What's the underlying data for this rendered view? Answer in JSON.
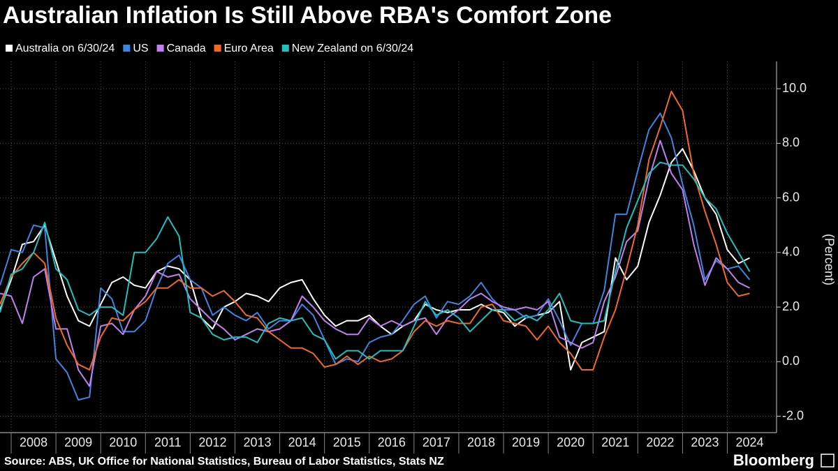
{
  "chart_data": {
    "type": "line",
    "title": "Australian Inflation Is Still Above RBA's Comfort Zone",
    "y_label": "(Percent)",
    "source": "Source: ABS, UK Office for National Statistics, Bureau of Labor Statistics, Stats NZ",
    "brand": "Bloomberg",
    "x": [
      2007.75,
      2008,
      2008.25,
      2008.5,
      2008.75,
      2009,
      2009.25,
      2009.5,
      2009.75,
      2010,
      2010.25,
      2010.5,
      2010.75,
      2011,
      2011.25,
      2011.5,
      2011.75,
      2012,
      2012.25,
      2012.5,
      2012.75,
      2013,
      2013.25,
      2013.5,
      2013.75,
      2014,
      2014.25,
      2014.5,
      2014.75,
      2015,
      2015.25,
      2015.5,
      2015.75,
      2016,
      2016.25,
      2016.5,
      2016.75,
      2017,
      2017.25,
      2017.5,
      2017.75,
      2018,
      2018.25,
      2018.5,
      2018.75,
      2019,
      2019.25,
      2019.5,
      2019.75,
      2020,
      2020.25,
      2020.5,
      2020.75,
      2021,
      2021.25,
      2021.5,
      2021.75,
      2022,
      2022.25,
      2022.5,
      2022.75,
      2023,
      2023.25,
      2023.5,
      2023.75,
      2024,
      2024.25,
      2024.5
    ],
    "series": [
      {
        "name": "Australia on 6/30/24",
        "color": "#ffffff",
        "values": [
          1.9,
          3.0,
          4.3,
          4.4,
          5.0,
          3.7,
          2.4,
          1.5,
          1.3,
          2.1,
          2.9,
          3.1,
          2.8,
          2.7,
          3.3,
          3.5,
          3.4,
          3.0,
          1.6,
          1.2,
          2.0,
          2.2,
          2.5,
          2.4,
          2.2,
          2.7,
          2.9,
          3.0,
          2.3,
          1.7,
          1.3,
          1.5,
          1.5,
          1.7,
          1.3,
          1.0,
          1.3,
          1.5,
          2.1,
          1.9,
          1.8,
          1.9,
          1.9,
          2.1,
          1.9,
          1.8,
          1.3,
          1.6,
          1.7,
          1.8,
          2.2,
          -0.3,
          0.7,
          0.9,
          1.1,
          3.8,
          3.0,
          3.5,
          5.1,
          6.1,
          7.3,
          7.8,
          7.0,
          6.0,
          5.4,
          4.1,
          3.6,
          3.8
        ]
      },
      {
        "name": "US",
        "color": "#3d85e0",
        "values": [
          2.8,
          4.1,
          4.0,
          5.0,
          4.9,
          0.1,
          -0.4,
          -1.4,
          -1.3,
          2.7,
          2.3,
          1.1,
          1.1,
          1.5,
          2.7,
          3.6,
          3.9,
          3.0,
          2.7,
          1.7,
          2.0,
          1.7,
          1.5,
          1.8,
          1.2,
          1.5,
          1.5,
          2.1,
          1.7,
          0.8,
          -0.1,
          0.1,
          0.0,
          0.7,
          0.9,
          1.0,
          1.5,
          2.1,
          2.4,
          1.6,
          2.2,
          2.1,
          2.4,
          2.9,
          2.3,
          1.9,
          1.9,
          1.6,
          1.7,
          2.3,
          1.5,
          0.6,
          1.4,
          1.4,
          2.6,
          5.4,
          5.4,
          7.0,
          8.5,
          9.1,
          8.2,
          6.5,
          5.0,
          3.0,
          3.7,
          3.4,
          3.5,
          3.0
        ]
      },
      {
        "name": "Canada",
        "color": "#c17ff0",
        "values": [
          2.5,
          2.4,
          1.4,
          3.1,
          3.4,
          1.2,
          1.2,
          -0.3,
          -0.9,
          1.3,
          1.4,
          1.0,
          1.9,
          2.4,
          3.3,
          3.1,
          3.2,
          2.3,
          1.9,
          1.5,
          1.2,
          0.8,
          1.0,
          1.2,
          1.1,
          1.2,
          1.5,
          2.4,
          2.0,
          1.5,
          1.2,
          1.0,
          1.0,
          1.6,
          1.3,
          1.5,
          1.3,
          1.5,
          1.6,
          1.0,
          1.6,
          1.9,
          2.3,
          2.5,
          2.2,
          2.0,
          1.9,
          2.0,
          1.9,
          2.2,
          0.9,
          0.7,
          0.5,
          0.7,
          2.2,
          3.1,
          4.4,
          4.8,
          6.7,
          8.1,
          6.9,
          6.3,
          4.3,
          2.8,
          3.8,
          3.4,
          2.9,
          2.7
        ]
      },
      {
        "name": "Euro Area",
        "color": "#f06a23",
        "values": [
          2.1,
          3.1,
          3.6,
          4.0,
          3.6,
          1.6,
          0.6,
          -0.1,
          -0.3,
          0.9,
          1.6,
          1.5,
          1.9,
          2.2,
          2.7,
          2.7,
          3.0,
          2.7,
          2.7,
          2.4,
          2.6,
          2.2,
          1.7,
          1.6,
          1.1,
          0.8,
          0.5,
          0.5,
          0.3,
          -0.2,
          -0.1,
          0.2,
          -0.1,
          0.2,
          0.0,
          0.1,
          0.4,
          1.1,
          1.5,
          1.3,
          1.5,
          1.4,
          1.4,
          2.0,
          2.1,
          1.5,
          1.4,
          1.3,
          0.8,
          1.3,
          0.7,
          0.3,
          -0.3,
          -0.3,
          0.9,
          1.9,
          3.4,
          5.0,
          7.4,
          8.6,
          9.9,
          9.2,
          6.9,
          5.5,
          4.3,
          2.9,
          2.4,
          2.5
        ]
      },
      {
        "name": "New Zealand on 6/30/24",
        "color": "#1fbfbf",
        "values": [
          1.8,
          3.2,
          3.4,
          4.0,
          5.1,
          3.4,
          3.0,
          1.9,
          1.7,
          2.0,
          2.0,
          1.7,
          4.0,
          4.0,
          4.5,
          5.3,
          4.6,
          1.8,
          1.6,
          1.0,
          0.8,
          0.9,
          0.9,
          0.7,
          1.4,
          1.6,
          1.5,
          1.6,
          1.0,
          0.8,
          0.1,
          0.4,
          0.4,
          0.1,
          0.4,
          0.4,
          0.4,
          1.3,
          2.2,
          1.7,
          1.9,
          1.6,
          1.1,
          1.5,
          1.9,
          1.9,
          1.5,
          1.7,
          1.5,
          1.9,
          2.5,
          1.5,
          1.4,
          1.4,
          1.5,
          3.3,
          4.9,
          5.9,
          6.9,
          7.3,
          7.2,
          7.2,
          6.7,
          6.0,
          5.6,
          4.7,
          4.0,
          3.3
        ]
      }
    ],
    "xlim": [
      2007.75,
      2025.1
    ],
    "xticks": [
      2008,
      2009,
      2010,
      2011,
      2012,
      2013,
      2014,
      2015,
      2016,
      2017,
      2018,
      2019,
      2020,
      2021,
      2022,
      2023,
      2024
    ],
    "ylim": [
      -2.6,
      11
    ],
    "yticks": [
      {
        "value": -2,
        "label": "-2.0"
      },
      {
        "value": 0,
        "label": "0.0"
      },
      {
        "value": 2,
        "label": "2.0"
      },
      {
        "value": 4,
        "label": "4.0"
      },
      {
        "value": 6,
        "label": "6.0"
      },
      {
        "value": 8,
        "label": "8.0"
      },
      {
        "value": 10,
        "label": "10.0"
      }
    ],
    "grid": true,
    "legend": "top"
  }
}
